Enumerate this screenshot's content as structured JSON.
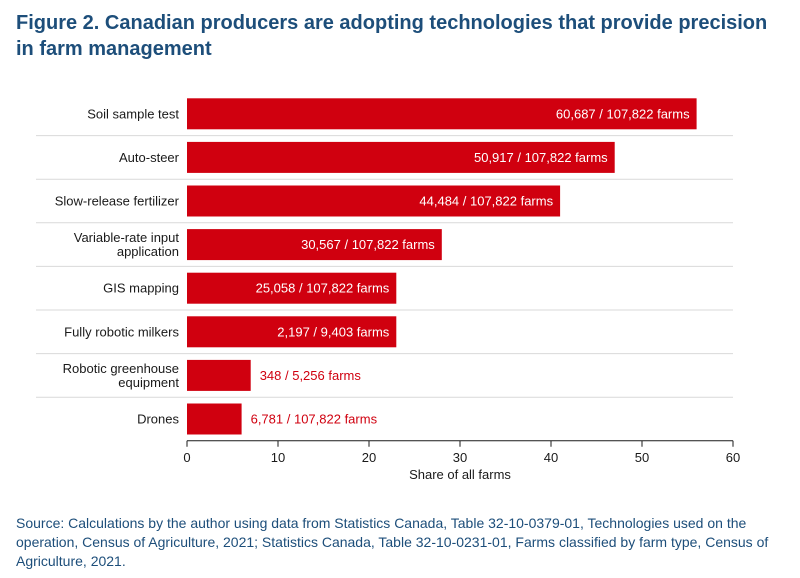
{
  "header": {
    "title": "Figure 2. Canadian producers are adopting technologies that provide precision in farm management"
  },
  "chart_data": {
    "type": "bar",
    "orientation": "horizontal",
    "categories": [
      [
        "Soil sample test"
      ],
      [
        "Auto-steer"
      ],
      [
        "Slow-release fertilizer"
      ],
      [
        "Variable-rate input",
        "application"
      ],
      [
        "GIS mapping"
      ],
      [
        "Fully robotic milkers"
      ],
      [
        "Robotic greenhouse",
        "equipment"
      ],
      [
        "Drones"
      ]
    ],
    "values": [
      56,
      47,
      41,
      28,
      23,
      23,
      7,
      6
    ],
    "data_labels": [
      "60,687 / 107,822 farms",
      "50,917 / 107,822 farms",
      "44,484 / 107,822 farms",
      "30,567 / 107,822 farms",
      "25,058 / 107,822 farms",
      "2,197 / 9,403 farms",
      "348 / 5,256 farms",
      "6,781 / 107,822 farms"
    ],
    "xlabel": "Share of all farms",
    "xlim": [
      0,
      60
    ],
    "xticks": [
      0,
      10,
      20,
      30,
      40,
      50,
      60
    ],
    "grid": "horizontal separators",
    "legend": "none",
    "bar_color": "#d0000f"
  },
  "footer": {
    "source": "Source: Calculations by the author using data from Statistics Canada, Table 32-10-0379-01, Technologies used on the operation, Census of Agriculture, 2021; Statistics Canada, Table 32-10-0231-01, Farms classified by farm type, Census of Agriculture, 2021."
  }
}
